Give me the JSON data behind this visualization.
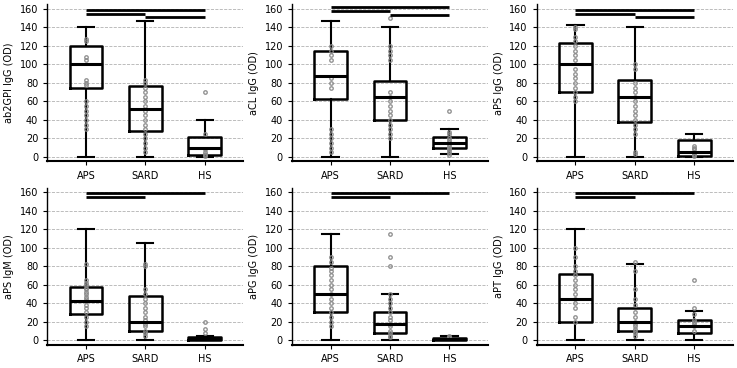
{
  "ylabels": [
    "ab2GPI IgG (OD)",
    "aCL IgG (OD)",
    "aPS IgG (OD)",
    "aPS IgM (OD)",
    "aPG IgG (OD)",
    "aPT IgG (OD)"
  ],
  "groups": [
    "APS",
    "SARD",
    "HS"
  ],
  "ylim": [
    -5,
    165
  ],
  "yticks": [
    0,
    20,
    40,
    60,
    80,
    100,
    120,
    140,
    160
  ],
  "all_stats": [
    [
      {
        "med": 100,
        "q1": 75,
        "q3": 120,
        "whislo": 0,
        "whishi": 140,
        "fliers": [
          125,
          127,
          108,
          105,
          83,
          80,
          78,
          60,
          55,
          50,
          45,
          40,
          35,
          30
        ]
      },
      {
        "med": 52,
        "q1": 28,
        "q3": 77,
        "whislo": 0,
        "whishi": 147,
        "fliers": [
          83,
          80,
          75,
          70,
          65,
          60,
          55,
          50,
          45,
          40,
          35,
          30,
          25,
          20,
          15,
          10,
          5
        ]
      },
      {
        "med": 10,
        "q1": 2,
        "q3": 22,
        "whislo": 0,
        "whishi": 40,
        "fliers": [
          70,
          25,
          8,
          5,
          3,
          2,
          1
        ]
      }
    ],
    [
      {
        "med": 87,
        "q1": 63,
        "q3": 115,
        "whislo": 0,
        "whishi": 147,
        "fliers": [
          120,
          115,
          110,
          105,
          85,
          80,
          75,
          30,
          25,
          20,
          15,
          10,
          5
        ]
      },
      {
        "med": 65,
        "q1": 40,
        "q3": 82,
        "whislo": 0,
        "whishi": 140,
        "fliers": [
          150,
          120,
          115,
          110,
          105,
          70,
          65,
          60,
          55,
          50,
          45,
          40,
          35,
          30,
          25,
          20
        ]
      },
      {
        "med": 15,
        "q1": 10,
        "q3": 22,
        "whislo": 3,
        "whishi": 30,
        "fliers": [
          50,
          27,
          25,
          20,
          18,
          16,
          14,
          12,
          10,
          8,
          6,
          4,
          2
        ]
      }
    ],
    [
      {
        "med": 100,
        "q1": 70,
        "q3": 123,
        "whislo": 0,
        "whishi": 143,
        "fliers": [
          140,
          138,
          130,
          125,
          120,
          115,
          110,
          105,
          95,
          90,
          85,
          80,
          75,
          70,
          65,
          60
        ]
      },
      {
        "med": 65,
        "q1": 38,
        "q3": 83,
        "whislo": 0,
        "whishi": 140,
        "fliers": [
          100,
          95,
          80,
          75,
          70,
          65,
          60,
          55,
          50,
          45,
          40,
          35,
          30,
          25,
          5,
          3
        ]
      },
      {
        "med": 5,
        "q1": 1,
        "q3": 18,
        "whislo": 0,
        "whishi": 25,
        "fliers": [
          3,
          2,
          1,
          5,
          8,
          10,
          12
        ]
      }
    ],
    [
      {
        "med": 42,
        "q1": 28,
        "q3": 58,
        "whislo": 0,
        "whishi": 120,
        "fliers": [
          82,
          65,
          62,
          60,
          57,
          55,
          52,
          50,
          47,
          45,
          42,
          38,
          35,
          30,
          25,
          20,
          15
        ]
      },
      {
        "med": 20,
        "q1": 10,
        "q3": 48,
        "whislo": 0,
        "whishi": 105,
        "fliers": [
          82,
          80,
          55,
          50,
          45,
          40,
          35,
          30,
          25,
          22,
          18,
          15,
          10,
          8,
          5
        ]
      },
      {
        "med": 1,
        "q1": 0,
        "q3": 3,
        "whislo": 0,
        "whishi": 5,
        "fliers": [
          20,
          12,
          8
        ]
      }
    ],
    [
      {
        "med": 50,
        "q1": 30,
        "q3": 80,
        "whislo": 0,
        "whishi": 115,
        "fliers": [
          90,
          85,
          78,
          75,
          70,
          65,
          60,
          55,
          50,
          45,
          40,
          35,
          30,
          25,
          20,
          15
        ]
      },
      {
        "med": 18,
        "q1": 8,
        "q3": 30,
        "whislo": 0,
        "whishi": 50,
        "fliers": [
          115,
          90,
          80,
          50,
          45,
          40,
          35,
          30,
          25,
          22,
          18,
          15,
          10,
          8,
          5,
          3
        ]
      },
      {
        "med": 1,
        "q1": 0,
        "q3": 2,
        "whislo": 0,
        "whishi": 4,
        "fliers": [
          5,
          3,
          2
        ]
      }
    ],
    [
      {
        "med": 45,
        "q1": 20,
        "q3": 72,
        "whislo": 0,
        "whishi": 120,
        "fliers": [
          100,
          90,
          80,
          75,
          70,
          65,
          60,
          55,
          50,
          45,
          40,
          35,
          25,
          20
        ]
      },
      {
        "med": 20,
        "q1": 10,
        "q3": 35,
        "whislo": 0,
        "whishi": 82,
        "fliers": [
          85,
          75,
          55,
          45,
          38,
          30,
          25,
          20,
          18,
          15,
          12,
          10,
          8,
          5
        ]
      },
      {
        "med": 15,
        "q1": 8,
        "q3": 22,
        "whislo": 0,
        "whishi": 32,
        "fliers": [
          65,
          35,
          28,
          22,
          20,
          18,
          15,
          10
        ]
      }
    ]
  ],
  "sig_bars": [
    [
      [
        1,
        3,
        159
      ],
      [
        1,
        2,
        155
      ],
      [
        2,
        3,
        151
      ]
    ],
    [
      [
        1,
        3,
        162
      ],
      [
        1,
        2,
        158
      ],
      [
        2,
        3,
        154
      ]
    ],
    [
      [
        1,
        3,
        159
      ],
      [
        1,
        2,
        155
      ],
      [
        2,
        3,
        151
      ]
    ],
    [
      [
        1,
        3,
        159
      ],
      [
        1,
        2,
        155
      ]
    ],
    [
      [
        1,
        3,
        159
      ],
      [
        1,
        2,
        155
      ]
    ],
    [
      [
        1,
        3,
        159
      ],
      [
        1,
        2,
        155
      ]
    ]
  ]
}
